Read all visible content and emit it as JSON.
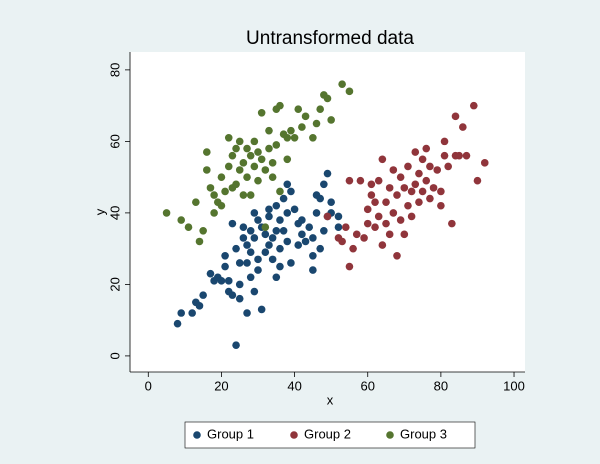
{
  "chart_data": {
    "type": "scatter",
    "title": "Untransformed data",
    "xlabel": "x",
    "ylabel": "y",
    "xlim": [
      -5,
      103
    ],
    "ylim": [
      -4.5,
      85
    ],
    "xticks": [
      0,
      20,
      40,
      60,
      80,
      100
    ],
    "yticks": [
      0,
      20,
      40,
      60,
      80
    ],
    "grid": false,
    "legend": "bottom",
    "series": [
      {
        "name": "Group 1",
        "color": "#1a476f",
        "x": [
          8,
          9,
          12,
          13,
          14,
          15,
          17,
          18,
          19,
          20,
          21,
          21,
          22,
          22,
          23,
          23,
          24,
          24,
          25,
          25,
          25,
          26,
          26,
          27,
          27,
          27,
          28,
          28,
          28,
          29,
          29,
          29,
          30,
          30,
          30,
          31,
          31,
          32,
          32,
          33,
          33,
          33,
          34,
          34,
          35,
          35,
          35,
          36,
          36,
          36,
          37,
          37,
          38,
          38,
          38,
          39,
          39,
          40,
          41,
          41,
          42,
          42,
          43,
          44,
          45,
          45,
          45,
          46,
          46,
          47,
          47,
          48,
          48,
          49,
          49,
          50,
          50,
          52,
          52
        ],
        "values": [
          9,
          12,
          12,
          15,
          14,
          17,
          23,
          21,
          22,
          21,
          25,
          28,
          21,
          18,
          17,
          37,
          3,
          30,
          26,
          16,
          20,
          36,
          33,
          31,
          26,
          12,
          35,
          29,
          22,
          40,
          33,
          18,
          38,
          27,
          24,
          36,
          13,
          34,
          29,
          39,
          41,
          31,
          33,
          27,
          35,
          22,
          42,
          38,
          30,
          25,
          44,
          35,
          48,
          40,
          32,
          46,
          26,
          41,
          37,
          31,
          38,
          34,
          32,
          36,
          33,
          24,
          28,
          45,
          40,
          44,
          30,
          48,
          35,
          51,
          39,
          40,
          43,
          36,
          39
        ]
      },
      {
        "name": "Group 2",
        "color": "#90353b",
        "x": [
          49,
          52,
          53,
          54,
          55,
          55,
          56,
          57,
          58,
          59,
          60,
          60,
          61,
          61,
          62,
          62,
          63,
          63,
          64,
          64,
          65,
          65,
          66,
          66,
          67,
          67,
          68,
          68,
          69,
          69,
          70,
          70,
          71,
          71,
          72,
          72,
          73,
          73,
          74,
          74,
          75,
          75,
          76,
          76,
          77,
          77,
          78,
          79,
          80,
          80,
          81,
          81,
          82,
          83,
          84,
          84,
          85,
          86,
          87,
          89,
          90,
          92
        ],
        "values": [
          39,
          33,
          32,
          36,
          25,
          49,
          30,
          34,
          49,
          33,
          37,
          41,
          45,
          48,
          36,
          43,
          49,
          39,
          55,
          31,
          43,
          37,
          47,
          34,
          52,
          40,
          28,
          45,
          50,
          38,
          47,
          34,
          53,
          42,
          46,
          39,
          57,
          48,
          51,
          43,
          46,
          55,
          58,
          49,
          53,
          44,
          47,
          52,
          46,
          42,
          60,
          56,
          53,
          37,
          67,
          56,
          56,
          64,
          56,
          70,
          49,
          54
        ]
      },
      {
        "name": "Group 3",
        "color": "#55752f",
        "x": [
          5,
          9,
          11,
          13,
          14,
          15,
          16,
          16,
          17,
          18,
          18,
          19,
          20,
          20,
          21,
          22,
          22,
          23,
          23,
          24,
          24,
          25,
          25,
          26,
          26,
          27,
          27,
          28,
          28,
          29,
          29,
          30,
          30,
          31,
          31,
          32,
          32,
          33,
          33,
          34,
          34,
          35,
          35,
          36,
          36,
          37,
          38,
          38,
          39,
          40,
          41,
          42,
          43,
          45,
          46,
          47,
          48,
          49,
          50,
          53,
          55
        ],
        "values": [
          40,
          38,
          36,
          43,
          32,
          35,
          52,
          57,
          47,
          40,
          45,
          43,
          42,
          50,
          46,
          61,
          53,
          47,
          56,
          58,
          48,
          60,
          52,
          45,
          54,
          58,
          50,
          56,
          45,
          53,
          60,
          49,
          57,
          68,
          55,
          52,
          36,
          58,
          63,
          50,
          54,
          69,
          59,
          70,
          46,
          62,
          61,
          55,
          63,
          61,
          69,
          64,
          67,
          61,
          65,
          69,
          73,
          72,
          66,
          76,
          74
        ]
      }
    ]
  }
}
